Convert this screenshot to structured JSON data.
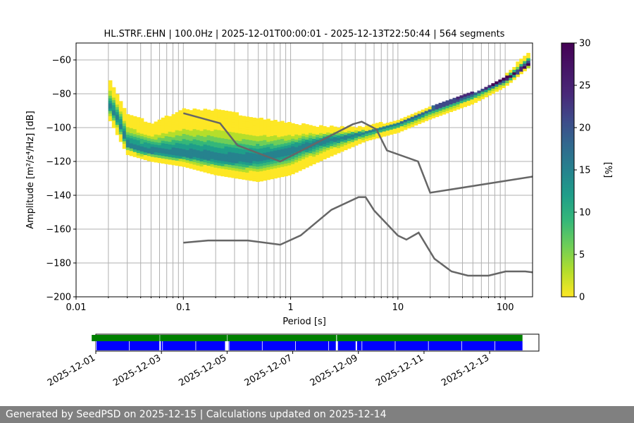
{
  "chart_data": [
    {
      "type": "heatmap",
      "title": "HL.STRF..EHN | 100.0Hz | 2025-12-01T00:00:01 - 2025-12-13T22:50:44 | 564 segments",
      "xlabel": "Period [s]",
      "ylabel": "Amplitude [m²/s⁴/Hz] [dB]",
      "xscale": "log",
      "xlim": [
        0.01,
        180
      ],
      "ylim": [
        -200,
        -50
      ],
      "xticks": [
        0.01,
        0.1,
        1,
        10,
        100
      ],
      "xtick_labels": [
        "0.01",
        "0.1",
        "1",
        "10",
        "100"
      ],
      "yticks": [
        -200,
        -180,
        -160,
        -140,
        -120,
        -100,
        -80,
        -60
      ],
      "ytick_labels": [
        "−200",
        "−180",
        "−160",
        "−140",
        "−120",
        "−100",
        "−80",
        "−60"
      ],
      "grid": true,
      "colorscale": "viridis",
      "colorbar": {
        "label": "[%]",
        "range": [
          0,
          30
        ],
        "ticks": [
          0,
          5,
          10,
          15,
          20,
          25,
          30
        ],
        "tick_labels": [
          "0",
          "5",
          "10",
          "15",
          "20",
          "25",
          "30"
        ]
      },
      "psd_mode": {
        "x": [
          0.02,
          0.025,
          0.03,
          0.04,
          0.05,
          0.07,
          0.1,
          0.15,
          0.2,
          0.3,
          0.5,
          0.7,
          1,
          1.5,
          2,
          3,
          5,
          7,
          10,
          15,
          20,
          30,
          50,
          70,
          100,
          130,
          170
        ],
        "y": [
          -86,
          -96,
          -110,
          -113,
          -114,
          -115,
          -116,
          -117,
          -118,
          -119,
          -118,
          -117,
          -114,
          -110,
          -108,
          -106,
          -103,
          -100,
          -97,
          -93,
          -89,
          -85,
          -79,
          -75,
          -71,
          -67,
          -62
        ]
      },
      "psd_spread": {
        "x": [
          0.02,
          0.03,
          0.05,
          0.1,
          0.2,
          0.5,
          1,
          2,
          5,
          10,
          20,
          50,
          100,
          170
        ],
        "upper": [
          -70,
          -92,
          -98,
          -90,
          -90,
          -95,
          -98,
          -100,
          -100,
          -96,
          -88,
          -80,
          -70,
          -55
        ],
        "lower": [
          -94,
          -116,
          -120,
          -123,
          -128,
          -132,
          -128,
          -119,
          -108,
          -103,
          -95,
          -86,
          -76,
          -64
        ]
      },
      "nhnm": {
        "x": [
          0.1,
          0.22,
          0.32,
          0.8,
          3.8,
          4.6,
          6.3,
          7.9,
          15.4,
          20,
          354.8
        ],
        "y": [
          -91.5,
          -97.4,
          -110.5,
          -120,
          -98,
          -96.5,
          -101,
          -113.5,
          -120,
          -138.5,
          -126
        ]
      },
      "nlnm": {
        "x": [
          0.1,
          0.17,
          0.4,
          0.8,
          1.24,
          2.4,
          4.3,
          5,
          6,
          10,
          12,
          15.6,
          21.9,
          31.6,
          45,
          70,
          101,
          154,
          180
        ],
        "y": [
          -168,
          -166.7,
          -166.7,
          -169.2,
          -163.7,
          -148.6,
          -141.1,
          -141.1,
          -149,
          -163.8,
          -166.2,
          -162.1,
          -177.5,
          -185,
          -187.5,
          -187.5,
          -185,
          -185,
          -185.5
        ]
      },
      "curve_color": "#666666"
    },
    {
      "type": "timeline",
      "xlim": [
        "2025-12-01",
        "2025-12-14T12:00:00"
      ],
      "xtick_labels": [
        "2025-12-01",
        "2025-12-03",
        "2025-12-05",
        "2025-12-07",
        "2025-12-09",
        "2025-12-11",
        "2025-12-13"
      ],
      "xticks": [
        "2025-12-01",
        "2025-12-03",
        "2025-12-05",
        "2025-12-07",
        "2025-12-09",
        "2025-12-11",
        "2025-12-13"
      ],
      "data_availability": {
        "color": "#008000",
        "segments": [
          [
            "2025-11-30T21:00:00",
            "2025-12-02T22:40:00"
          ],
          [
            "2025-12-02T23:00:00",
            "2025-12-04T23:50:00"
          ],
          [
            "2025-12-05T00:10:00",
            "2025-12-08T07:50:00"
          ],
          [
            "2025-12-08T08:20:00",
            "2025-12-14T00:00:00"
          ]
        ]
      },
      "psd_segments": {
        "color": "#0000ff",
        "segments": [
          [
            "2025-12-01T00:00:00",
            "2025-12-02T22:30:00"
          ],
          [
            "2025-12-02T23:30:00",
            "2025-12-04T22:30:00"
          ],
          [
            "2025-12-05T01:00:00",
            "2025-12-08T07:30:00"
          ],
          [
            "2025-12-08T09:00:00",
            "2025-12-08T22:00:00"
          ],
          [
            "2025-12-08T23:00:00",
            "2025-12-14T00:00:00"
          ]
        ]
      }
    }
  ],
  "footer": {
    "text": "Generated by SeedPSD on 2025-12-15 | Calculations updated on 2025-12-14"
  }
}
